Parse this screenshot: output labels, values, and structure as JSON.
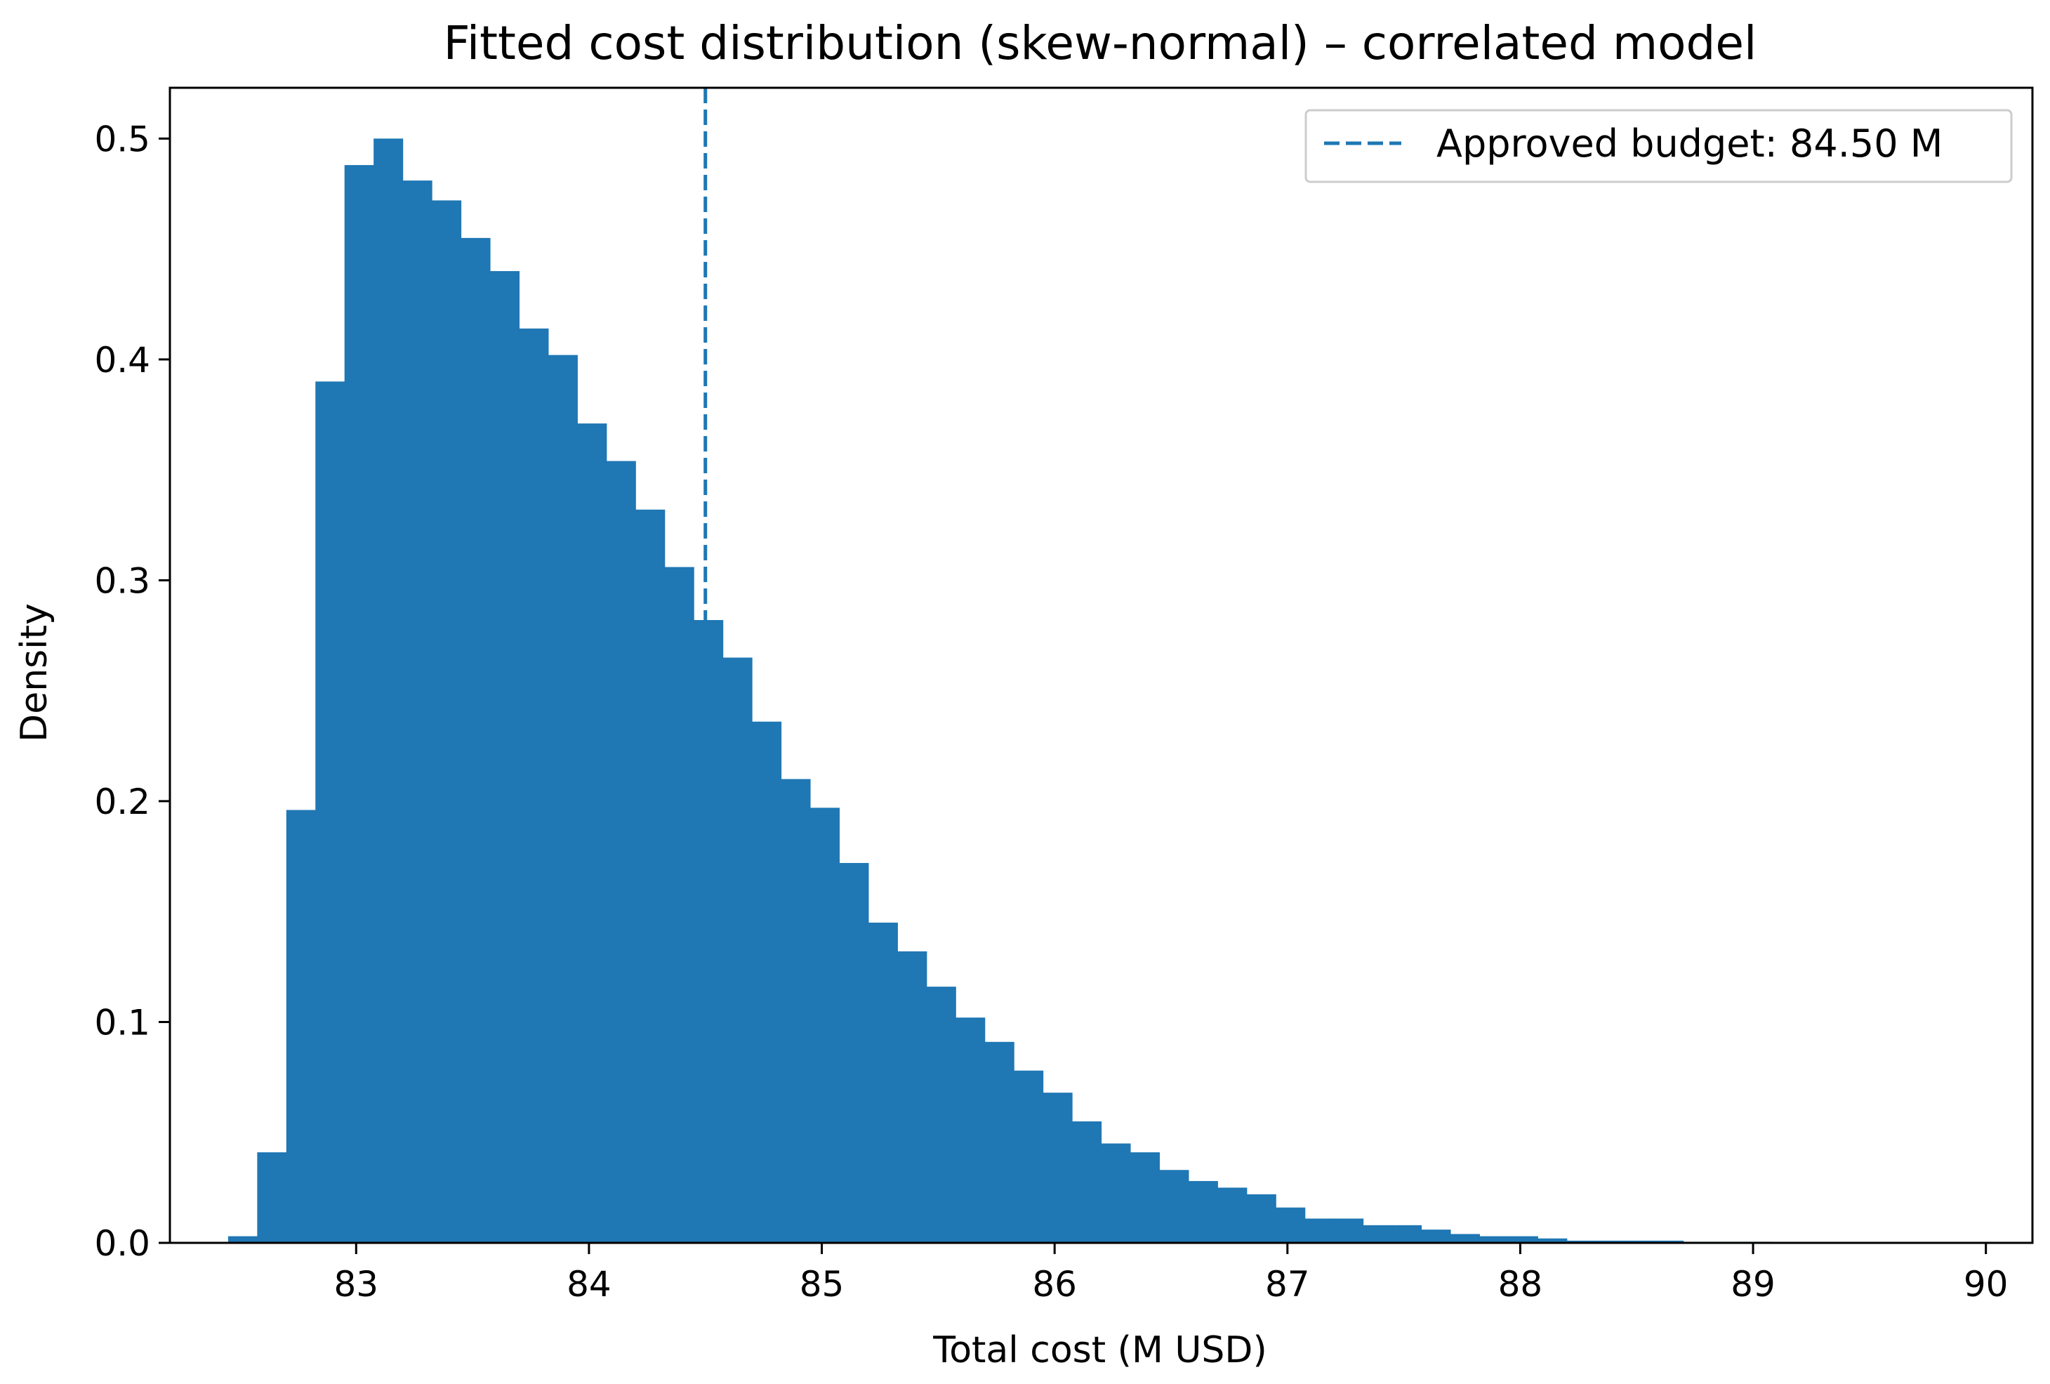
{
  "chart_data": {
    "type": "bar",
    "title": "Fitted cost distribution (skew-normal) – correlated model",
    "xlabel": "Total cost (M USD)",
    "ylabel": "Density",
    "xlim": [
      82.2,
      90.2
    ],
    "ylim": [
      0,
      0.523
    ],
    "xticks": [
      "83",
      "84",
      "85",
      "86",
      "87",
      "88",
      "89",
      "90"
    ],
    "yticks": [
      "0.0",
      "0.1",
      "0.2",
      "0.3",
      "0.4",
      "0.5"
    ],
    "grid": false,
    "legend_position": "top-right",
    "bar_color": "#1f77b4",
    "bin_start": 82.45,
    "bin_width": 0.125,
    "densities": [
      0.003,
      0.041,
      0.196,
      0.39,
      0.488,
      0.5,
      0.481,
      0.472,
      0.455,
      0.44,
      0.414,
      0.402,
      0.371,
      0.354,
      0.332,
      0.306,
      0.282,
      0.265,
      0.236,
      0.21,
      0.197,
      0.172,
      0.145,
      0.132,
      0.116,
      0.102,
      0.091,
      0.078,
      0.068,
      0.055,
      0.045,
      0.041,
      0.033,
      0.028,
      0.025,
      0.022,
      0.016,
      0.011,
      0.011,
      0.008,
      0.008,
      0.006,
      0.004,
      0.003,
      0.003,
      0.002,
      0.001,
      0.001,
      0.001,
      0.001,
      0.0005,
      0.0005,
      0.0005,
      0.0003
    ],
    "reference_line": {
      "x": 84.5,
      "label": "Approved budget: 84.50 M",
      "style": "dashed",
      "color": "#1f77b4"
    }
  }
}
